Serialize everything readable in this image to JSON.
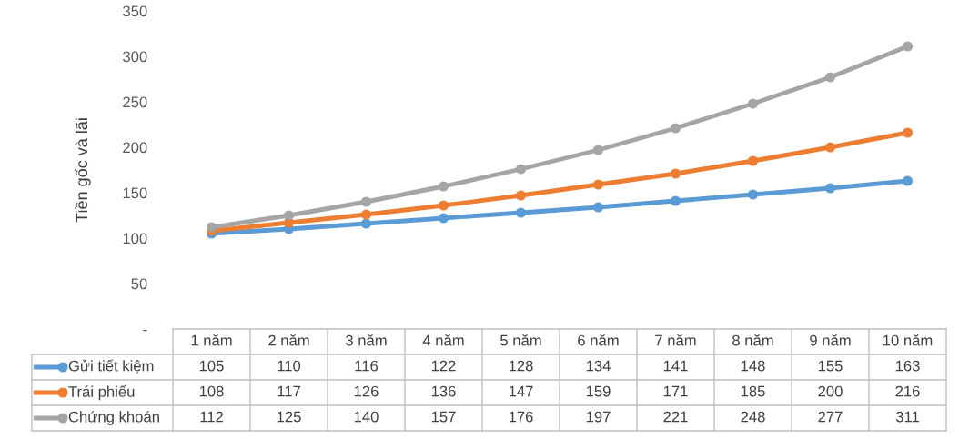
{
  "chart_data": {
    "type": "line",
    "ylabel": "Tiền gốc và lãi",
    "categories": [
      "1 năm",
      "2 năm",
      "3 năm",
      "4 năm",
      "5 năm",
      "6 năm",
      "7 năm",
      "8 năm",
      "9 năm",
      "10 năm"
    ],
    "series": [
      {
        "name": "Gửi tiết kiệm",
        "color": "#5b9bd5",
        "values": [
          105,
          110,
          116,
          122,
          128,
          134,
          141,
          148,
          155,
          163
        ]
      },
      {
        "name": "Trái phiếu",
        "color": "#ed7d31",
        "values": [
          108,
          117,
          126,
          136,
          147,
          159,
          171,
          185,
          200,
          216
        ]
      },
      {
        "name": "Chứng khoán",
        "color": "#a5a5a5",
        "values": [
          112,
          125,
          140,
          157,
          176,
          197,
          221,
          248,
          277,
          311
        ]
      }
    ],
    "ylim": [
      0,
      350
    ],
    "yticks": [
      {
        "value": 0,
        "label": "-"
      },
      50,
      100,
      150,
      200,
      250,
      300,
      350
    ],
    "marker": "circle",
    "line_style": "solid",
    "grid": false,
    "legend": "bottom",
    "data_labels": true
  }
}
